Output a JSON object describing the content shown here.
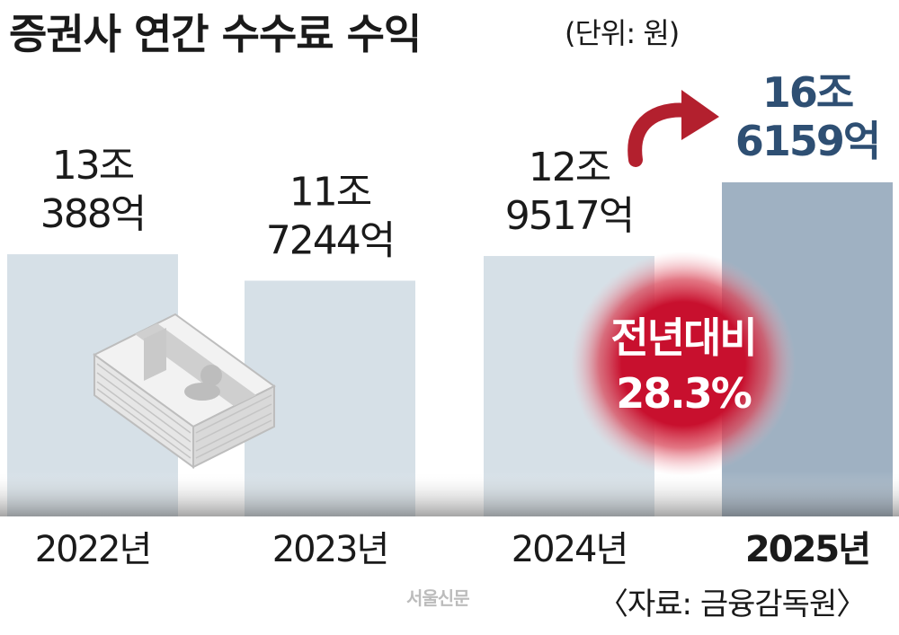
{
  "title": "증권사 연간 수수료 수익",
  "unit_text": "(단위: 원)",
  "watermark": "서울신문",
  "source": "〈자료: 금융감독원〉",
  "badge": {
    "line1": "전년대비",
    "line2": "28.3%"
  },
  "colors": {
    "bar": "#d6e0e7",
    "bar_highlight": "#9fb1c2",
    "highlight_text": "#2e4f73",
    "badge": "#c8102e",
    "arrow": "#b3202e"
  },
  "icons": [
    "money-stack-icon",
    "curved-arrow-icon"
  ],
  "chart_data": {
    "type": "bar",
    "title": "증권사 연간 수수료 수익",
    "unit": "원",
    "categories": [
      "2022년",
      "2023년",
      "2024년",
      "2025년"
    ],
    "values": [
      130388,
      117244,
      129517,
      166159
    ],
    "value_unit": "억 원",
    "value_labels": [
      [
        "13조",
        "388억"
      ],
      [
        "11조",
        "7244억"
      ],
      [
        "12조",
        "9517억"
      ],
      [
        "16조",
        "6159억"
      ]
    ],
    "highlight_index": 3,
    "annotation": "전년대비 28.3%",
    "grid": false,
    "legend": "none"
  }
}
